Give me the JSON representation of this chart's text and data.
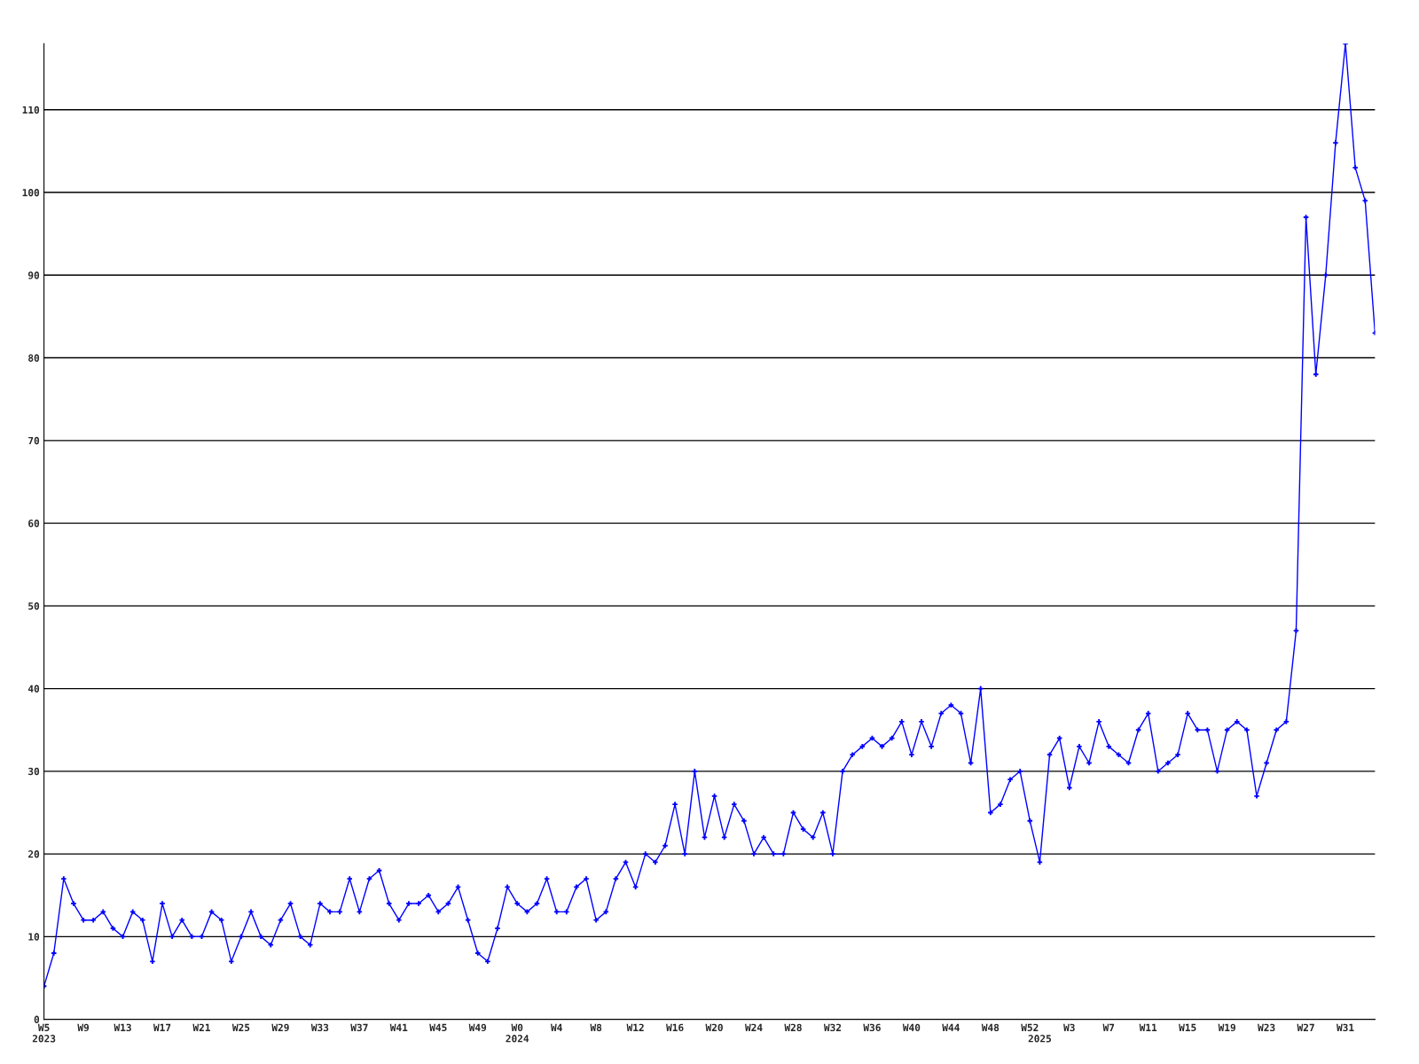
{
  "chart_data": {
    "type": "line",
    "categories": [
      "W5\n2023",
      null,
      null,
      null,
      "W9",
      null,
      null,
      null,
      "W13",
      null,
      null,
      null,
      "W17",
      null,
      null,
      null,
      "W21",
      null,
      null,
      null,
      "W25",
      null,
      null,
      null,
      "W29",
      null,
      null,
      null,
      "W33",
      null,
      null,
      null,
      "W37",
      null,
      null,
      null,
      "W41",
      null,
      null,
      null,
      "W45",
      null,
      null,
      null,
      "W49",
      null,
      null,
      null,
      "W0\n2024",
      null,
      null,
      null,
      "W4",
      null,
      null,
      null,
      "W8",
      null,
      null,
      null,
      "W12",
      null,
      null,
      null,
      "W16",
      null,
      null,
      null,
      "W20",
      null,
      null,
      null,
      "W24",
      null,
      null,
      null,
      "W28",
      null,
      null,
      null,
      "W32",
      null,
      null,
      null,
      "W36",
      null,
      null,
      null,
      "W40",
      null,
      null,
      null,
      "W44",
      null,
      null,
      null,
      "W48",
      null,
      null,
      null,
      "W52",
      "\n2025",
      null,
      null,
      "W3",
      null,
      null,
      null,
      "W7",
      null,
      null,
      null,
      "W11",
      null,
      null,
      null,
      "W15",
      null,
      null,
      null,
      "W19",
      null,
      null,
      null,
      "W23",
      null,
      null,
      null,
      "W27",
      null,
      null,
      null,
      "W31",
      null,
      null,
      null
    ],
    "series": [
      {
        "color": "#0000ff",
        "values": [
          4,
          8,
          17,
          14,
          12,
          12,
          13,
          11,
          10,
          13,
          12,
          7,
          14,
          10,
          12,
          10,
          10,
          13,
          12,
          7,
          10,
          13,
          10,
          9,
          12,
          14,
          10,
          9,
          14,
          13,
          13,
          17,
          13,
          17,
          18,
          14,
          12,
          14,
          14,
          15,
          13,
          14,
          16,
          12,
          8,
          7,
          11,
          16,
          14,
          13,
          14,
          17,
          13,
          13,
          16,
          17,
          12,
          13,
          17,
          19,
          16,
          20,
          19,
          21,
          26,
          20,
          30,
          22,
          27,
          22,
          26,
          24,
          20,
          22,
          20,
          20,
          25,
          23,
          22,
          25,
          20,
          30,
          32,
          33,
          34,
          33,
          34,
          36,
          32,
          36,
          33,
          37,
          38,
          37,
          31,
          40,
          25,
          26,
          29,
          30,
          24,
          19,
          32,
          34,
          28,
          33,
          31,
          36,
          33,
          32,
          31,
          35,
          37,
          30,
          31,
          32,
          37,
          35,
          35,
          30,
          35,
          36,
          35,
          27,
          31,
          35,
          36,
          47,
          97,
          78,
          90,
          106,
          118,
          103,
          99,
          83
        ]
      }
    ],
    "ylim": [
      0,
      118
    ],
    "yticks": [
      0,
      10,
      20,
      30,
      40,
      50,
      60,
      70,
      80,
      90,
      100,
      110
    ],
    "grid": "y",
    "marker": "cross",
    "line_style": "solid"
  }
}
